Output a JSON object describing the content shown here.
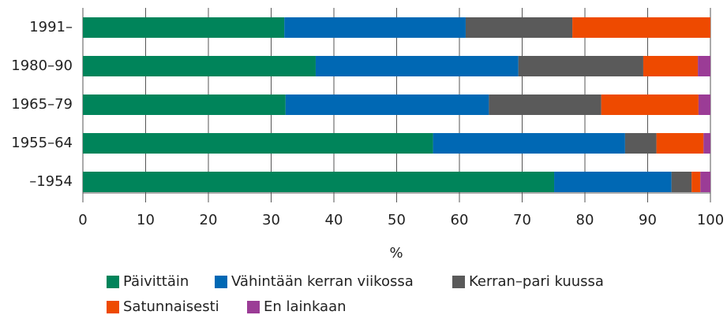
{
  "chart_data": {
    "type": "stacked_barh",
    "categories": [
      "1991–",
      "1980–90",
      "1965–79",
      "1955–64",
      "–1954"
    ],
    "series": [
      {
        "name": "Päivittäin",
        "color": "#00845a",
        "values": [
          32.1,
          37.1,
          32.3,
          55.8,
          75.1
        ]
      },
      {
        "name": "Vähintään kerran viikossa",
        "color": "#0068b4",
        "values": [
          28.9,
          32.3,
          32.4,
          30.6,
          18.7
        ]
      },
      {
        "name": "Kerran–pari kuussa",
        "color": "#5a5a5a",
        "values": [
          17.0,
          19.9,
          17.9,
          5.0,
          3.2
        ]
      },
      {
        "name": "Satunnaisesti",
        "color": "#ee4a00",
        "values": [
          22.0,
          8.7,
          15.5,
          7.5,
          1.4
        ]
      },
      {
        "name": "En lainkaan",
        "color": "#9b3c96",
        "values": [
          0,
          2.0,
          1.9,
          1.1,
          1.6
        ]
      }
    ],
    "xlabel": "%",
    "xlim": [
      0,
      100
    ],
    "xticks": [
      0,
      10,
      20,
      30,
      40,
      50,
      60,
      70,
      80,
      90,
      100
    ],
    "grid": true,
    "legend": "bottom"
  }
}
